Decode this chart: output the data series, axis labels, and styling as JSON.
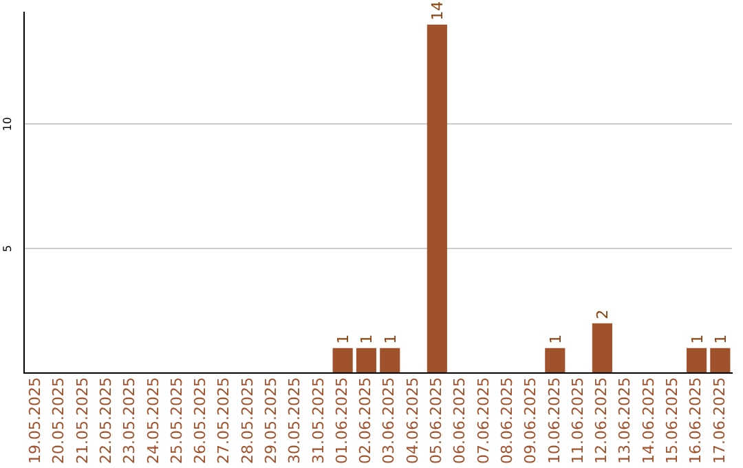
{
  "chart_data": {
    "type": "bar",
    "categories": [
      "19.05.2025",
      "20.05.2025",
      "21.05.2025",
      "22.05.2025",
      "23.05.2025",
      "24.05.2025",
      "25.05.2025",
      "26.05.2025",
      "27.05.2025",
      "28.05.2025",
      "29.05.2025",
      "30.05.2025",
      "31.05.2025",
      "01.06.2025",
      "02.06.2025",
      "03.06.2025",
      "04.06.2025",
      "05.06.2025",
      "06.06.2025",
      "07.06.2025",
      "08.06.2025",
      "09.06.2025",
      "10.06.2025",
      "11.06.2025",
      "12.06.2025",
      "13.06.2025",
      "14.06.2025",
      "15.06.2025",
      "16.06.2025",
      "17.06.2025"
    ],
    "values": [
      0,
      0,
      0,
      0,
      0,
      0,
      0,
      0,
      0,
      0,
      0,
      0,
      0,
      1,
      1,
      1,
      0,
      14,
      0,
      0,
      0,
      0,
      1,
      0,
      2,
      0,
      0,
      0,
      1,
      1
    ],
    "value_labels": [
      null,
      null,
      null,
      null,
      null,
      null,
      null,
      null,
      null,
      null,
      null,
      null,
      null,
      "1",
      "1",
      "1",
      null,
      "14",
      null,
      null,
      null,
      null,
      "1",
      null,
      "2",
      null,
      null,
      null,
      "1",
      "1"
    ],
    "color": "#a0522d",
    "ylim": [
      0,
      14.5
    ],
    "yticks": [
      {
        "value": 0,
        "label": null
      },
      5,
      10
    ],
    "grid": "y"
  }
}
